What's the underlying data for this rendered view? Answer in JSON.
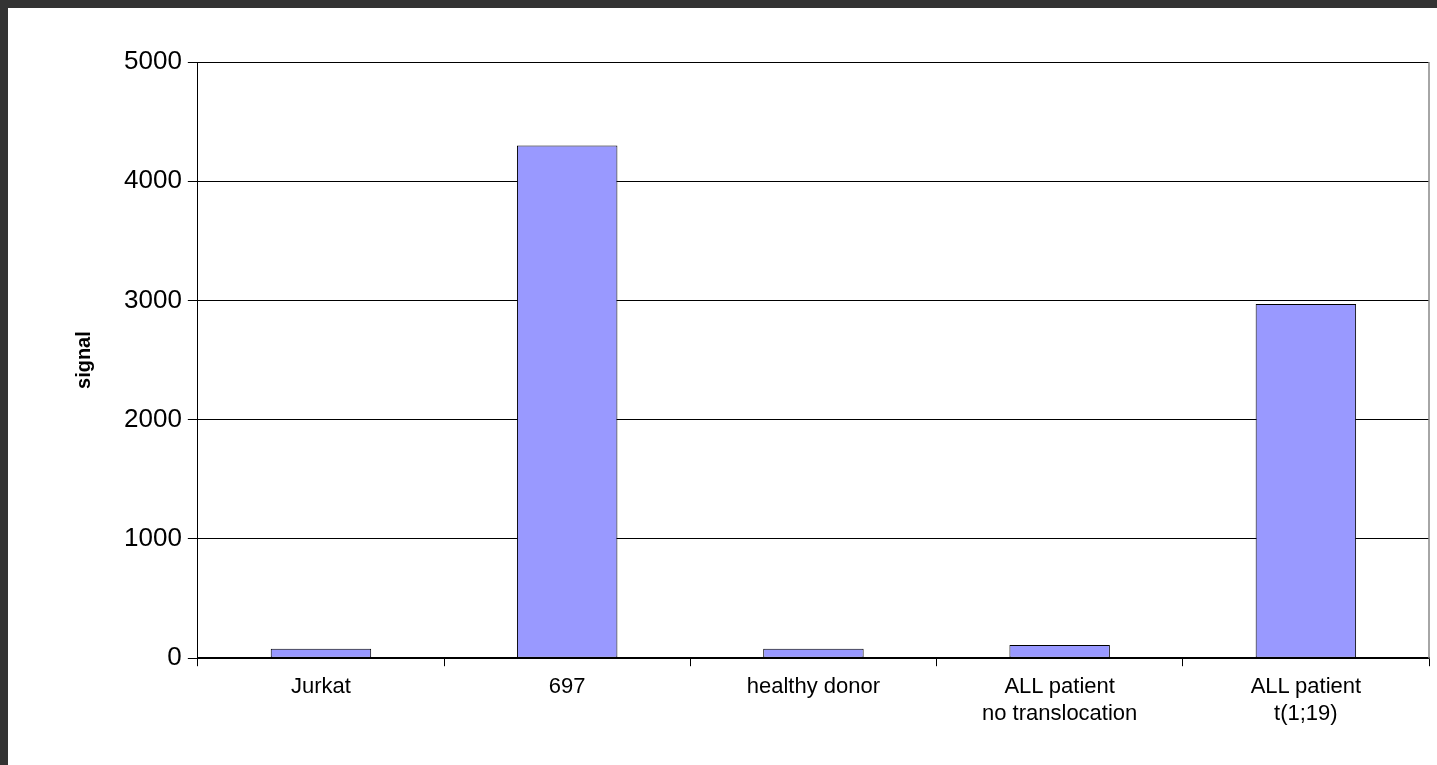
{
  "chart_data": {
    "type": "bar",
    "ylabel": "signal",
    "categories": [
      "Jurkat",
      "697",
      "healthy donor",
      "ALL patient\nno translocation",
      "ALL patient\nt(1;19)"
    ],
    "values": [
      80,
      4300,
      80,
      110,
      2970
    ],
    "color": "#9999ff",
    "ylim": [
      0,
      5000
    ],
    "yticks": [
      0,
      1000,
      2000,
      3000,
      4000,
      5000
    ],
    "grid": "y"
  }
}
